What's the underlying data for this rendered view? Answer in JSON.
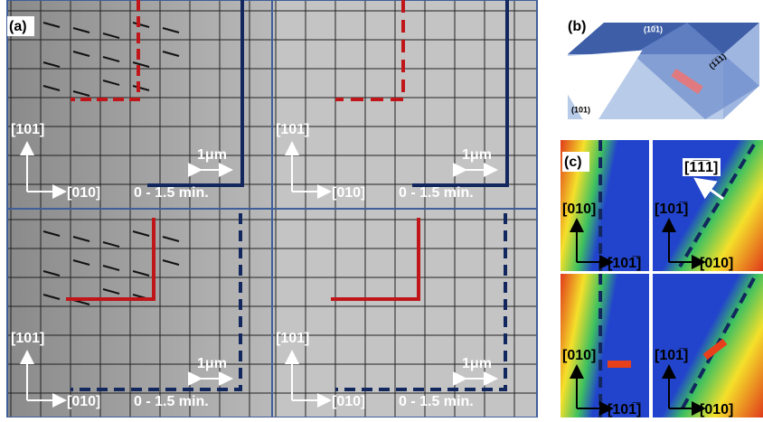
{
  "panel_a": {
    "label": "(a)",
    "quadrants": [
      {
        "axis_vertical": "[101]",
        "axis_horizontal": "[010]",
        "time": "0 - 1.5 min.",
        "scale": "1μm"
      },
      {
        "axis_vertical": "[101]",
        "axis_horizontal": "[010]",
        "time": "0 - 1.5 min.",
        "scale": "1μm"
      },
      {
        "axis_vertical": "[101]",
        "axis_horizontal": "[010]",
        "time": "0 - 1.5 min.",
        "scale": "1μm"
      },
      {
        "axis_vertical": "[101]",
        "axis_horizontal": "[010]",
        "time": "0 - 1.5 min.",
        "scale": "1μm"
      }
    ]
  },
  "panel_b": {
    "label": "(b)",
    "top_face": "(10̅1)",
    "side_face": "(1̅1̅1)",
    "front_face": "(101)"
  },
  "panel_c": {
    "label": "(c)",
    "direction": "[1̅1̅1]",
    "tiles": [
      {
        "axis_vertical": "[010]",
        "axis_horizontal": "[101̅]"
      },
      {
        "axis_vertical": "[101̅]",
        "axis_horizontal": "[010]"
      },
      {
        "axis_vertical": "[010]",
        "axis_horizontal": "[101̅]"
      },
      {
        "axis_vertical": "[101̅]",
        "axis_horizontal": "[010]"
      }
    ]
  }
}
